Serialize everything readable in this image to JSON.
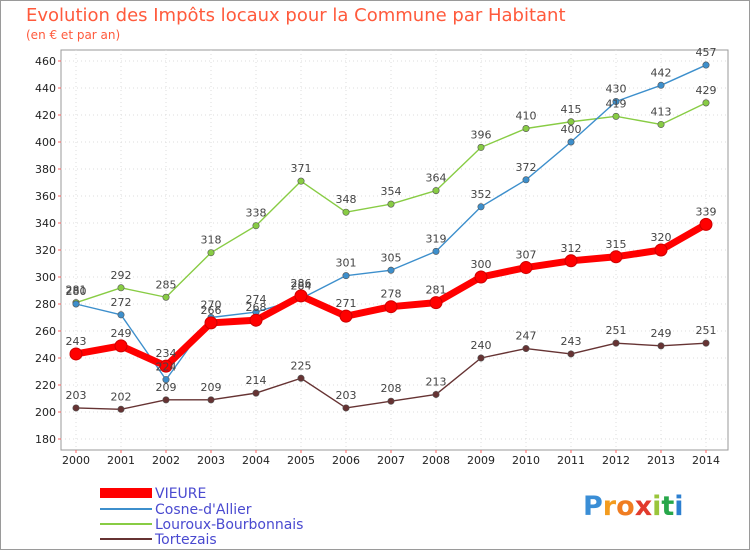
{
  "chart_data": {
    "type": "line",
    "title": "Evolution des Impôts locaux pour la Commune par Habitant",
    "subtitle": "(en € et par an)",
    "xlabel": "",
    "ylabel": "",
    "categories": [
      "2000",
      "2001",
      "2002",
      "2003",
      "2004",
      "2005",
      "2006",
      "2007",
      "2008",
      "2009",
      "2010",
      "2011",
      "2012",
      "2013",
      "2014"
    ],
    "ylim": [
      180,
      460
    ],
    "yticks": [
      180,
      200,
      220,
      240,
      260,
      280,
      300,
      320,
      340,
      360,
      380,
      400,
      420,
      440,
      460
    ],
    "grid": true,
    "legend_position": "bottom-left",
    "series": [
      {
        "name": "VIEURE",
        "color": "#ff0000",
        "values": [
          243,
          249,
          234,
          266,
          268,
          286,
          271,
          278,
          281,
          300,
          307,
          312,
          315,
          320,
          339
        ]
      },
      {
        "name": "Cosne-d'Allier",
        "color": "#3d8fcc",
        "values": [
          280,
          272,
          224,
          270,
          274,
          284,
          301,
          305,
          319,
          352,
          372,
          400,
          430,
          442,
          457
        ]
      },
      {
        "name": "Louroux-Bourbonnais",
        "color": "#88cc44",
        "values": [
          281,
          292,
          285,
          318,
          338,
          371,
          348,
          354,
          364,
          396,
          410,
          415,
          419,
          413,
          429
        ]
      },
      {
        "name": "Tortezais",
        "color": "#663333",
        "values": [
          203,
          202,
          209,
          209,
          214,
          225,
          203,
          208,
          213,
          240,
          247,
          243,
          251,
          249,
          251
        ]
      }
    ]
  },
  "brand": {
    "letters": [
      "P",
      "r",
      "o",
      "x",
      "i",
      "t",
      "i"
    ],
    "colors": [
      "#3a8ed6",
      "#f39c1f",
      "#f07d22",
      "#e23b2d",
      "#9ac53b",
      "#27a74a",
      "#2c7fd0"
    ]
  }
}
